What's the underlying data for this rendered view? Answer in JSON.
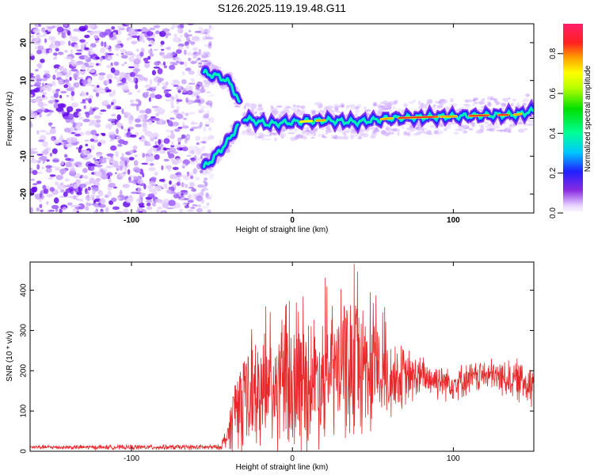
{
  "title": "S126.2025.119.19.48.G11",
  "chart_data": [
    {
      "type": "heatmap",
      "xlabel": "Height of straight line (km)",
      "ylabel": "Frequency (Hz)",
      "xlim": [
        -163,
        150
      ],
      "ylim": [
        -25,
        25
      ],
      "xticks": [
        -100,
        0,
        100
      ],
      "yticks": [
        -20,
        -10,
        0,
        10,
        20
      ],
      "colorbar": {
        "label": "Normalized spectral amplitude",
        "range": [
          0,
          0.95
        ],
        "ticks": [
          0.0,
          0.2,
          0.4,
          0.6,
          0.8
        ]
      },
      "features": {
        "noise_region_x": [
          -163,
          -55
        ],
        "upper_branch": [
          [
            -55,
            12
          ],
          [
            -45,
            11
          ],
          [
            -38,
            9
          ],
          [
            -33,
            4
          ]
        ],
        "lower_branch": [
          [
            -55,
            -13
          ],
          [
            -48,
            -10
          ],
          [
            -40,
            -6
          ],
          [
            -34,
            -2
          ]
        ],
        "main_ridge": [
          [
            -30,
            0
          ],
          [
            -15,
            -1.5
          ],
          [
            0,
            -1
          ],
          [
            20,
            -0.5
          ],
          [
            40,
            -1
          ],
          [
            60,
            0
          ],
          [
            80,
            0.3
          ],
          [
            100,
            0.5
          ],
          [
            120,
            0.8
          ],
          [
            140,
            1
          ],
          [
            150,
            2
          ]
        ]
      }
    },
    {
      "type": "line",
      "xlabel": "Height of straight line (km)",
      "ylabel": "SNR (10 * v/v)",
      "xlim": [
        -163,
        150
      ],
      "ylim": [
        0,
        470
      ],
      "xticks": [
        -100,
        0,
        100
      ],
      "yticks": [
        0,
        100,
        200,
        300,
        400
      ],
      "line_color": "#e8292b",
      "envelope": [
        {
          "x": -163,
          "baseline": 10,
          "amplitude": 6
        },
        {
          "x": -45,
          "baseline": 10,
          "amplitude": 8
        },
        {
          "x": -40,
          "baseline": 40,
          "amplitude": 40
        },
        {
          "x": -35,
          "baseline": 120,
          "amplitude": 140
        },
        {
          "x": -20,
          "baseline": 140,
          "amplitude": 160
        },
        {
          "x": 0,
          "baseline": 160,
          "amplitude": 200
        },
        {
          "x": 20,
          "baseline": 190,
          "amplitude": 190
        },
        {
          "x": 40,
          "baseline": 220,
          "amplitude": 220
        },
        {
          "x": 60,
          "baseline": 180,
          "amplitude": 120
        },
        {
          "x": 80,
          "baseline": 185,
          "amplitude": 60
        },
        {
          "x": 100,
          "baseline": 170,
          "amplitude": 50
        },
        {
          "x": 120,
          "baseline": 190,
          "amplitude": 45
        },
        {
          "x": 150,
          "baseline": 170,
          "amplitude": 70
        }
      ]
    }
  ]
}
